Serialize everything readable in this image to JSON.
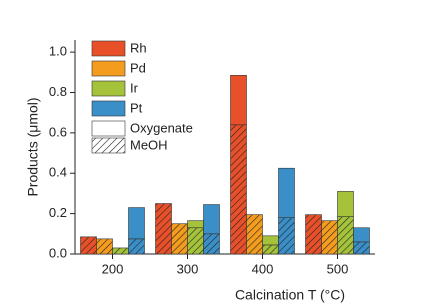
{
  "chart_data": {
    "type": "stacked-bar",
    "y_label": "Products (μmol)",
    "x_label": "Calcination T (°C)",
    "categories": [
      "200",
      "300",
      "400",
      "500"
    ],
    "components": [
      "Oxygenate",
      "MeOH"
    ],
    "series": [
      {
        "name": "Rh",
        "color": "#e8502a",
        "meoh": [
          0.085,
          0.25,
          0.64,
          0.195
        ],
        "oxygenate": [
          0,
          0,
          0.245,
          0
        ]
      },
      {
        "name": "Pd",
        "color": "#f39c1e",
        "meoh": [
          0.075,
          0.15,
          0.195,
          0.165
        ],
        "oxygenate": [
          0,
          0,
          0,
          0
        ]
      },
      {
        "name": "Ir",
        "color": "#a4c23a",
        "meoh": [
          0.03,
          0.13,
          0.045,
          0.185
        ],
        "oxygenate": [
          0,
          0.035,
          0.045,
          0.125
        ]
      },
      {
        "name": "Pt",
        "color": "#3a8fc8",
        "meoh": [
          0.075,
          0.1,
          0.18,
          0.06
        ],
        "oxygenate": [
          0.155,
          0.145,
          0.245,
          0.07
        ]
      }
    ],
    "ylim": [
      0,
      1.06
    ],
    "yticks": [
      {
        "value": 0,
        "label": "0.0"
      },
      {
        "value": 0.2,
        "label": "0.2"
      },
      {
        "value": 0.4,
        "label": "0.4"
      },
      {
        "value": 0.6,
        "label": "0.6"
      },
      {
        "value": 0.8,
        "label": "0.8"
      },
      {
        "value": 1,
        "label": "1.0"
      }
    ]
  }
}
